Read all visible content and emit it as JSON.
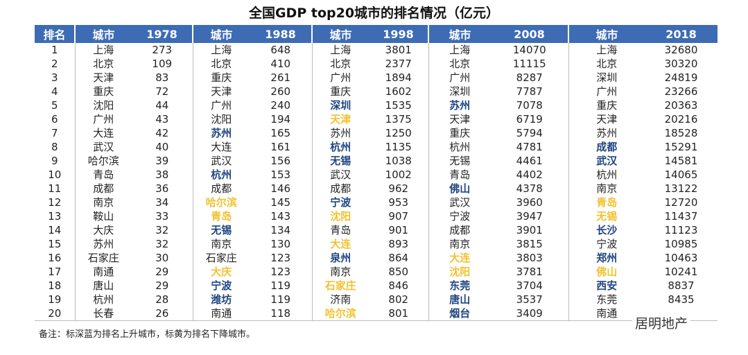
{
  "title": "全国GDP top20城市的排名情况（亿元）",
  "table": {
    "header": [
      "排名",
      "城市",
      "1978",
      "城市",
      "1988",
      "城市",
      "1998",
      "城市",
      "2008",
      "城市",
      "2018"
    ],
    "rows": [
      [
        1,
        "上海",
        273,
        "上海",
        648,
        "上海",
        3801,
        "上海",
        14070,
        "上海",
        32680
      ],
      [
        2,
        "北京",
        109,
        "北京",
        410,
        "北京",
        2377,
        "北京",
        11115,
        "北京",
        30320
      ],
      [
        3,
        "天津",
        83,
        "重庆",
        261,
        "广州",
        1894,
        "广州",
        8287,
        "深圳",
        24819
      ],
      [
        4,
        "重庆",
        72,
        "天津",
        260,
        "重庆",
        1602,
        "深圳",
        7787,
        "广州",
        23266
      ],
      [
        5,
        "沈阳",
        44,
        "广州",
        240,
        {
          "text": "深圳",
          "color": "#1f4580"
        },
        1535,
        {
          "text": "苏州",
          "color": "#1f4580"
        },
        7078,
        "重庆",
        20363
      ],
      [
        6,
        "广州",
        43,
        "沈阳",
        194,
        {
          "text": "天津",
          "color": "#f2c230"
        },
        1375,
        "天津",
        6719,
        "天津",
        20216
      ],
      [
        7,
        "大连",
        42,
        {
          "text": "苏州",
          "color": "#1f4580"
        },
        165,
        "苏州",
        1250,
        "重庆",
        5794,
        "苏州",
        18528
      ],
      [
        8,
        "武汉",
        40,
        "大连",
        161,
        {
          "text": "杭州",
          "color": "#1f4580"
        },
        1135,
        "杭州",
        4781,
        {
          "text": "成都",
          "color": "#1f4580"
        },
        15291
      ],
      [
        9,
        "哈尔滨",
        39,
        "武汉",
        156,
        {
          "text": "无锡",
          "color": "#1f4580"
        },
        1038,
        "无锡",
        4461,
        {
          "text": "武汉",
          "color": "#1f4580"
        },
        14581
      ],
      [
        10,
        "青岛",
        38,
        {
          "text": "杭州",
          "color": "#1f4580"
        },
        153,
        "武汉",
        1002,
        "青岛",
        4402,
        "杭州",
        14065
      ],
      [
        11,
        "成都",
        36,
        "成都",
        146,
        "成都",
        962,
        {
          "text": "佛山",
          "color": "#1f4580"
        },
        4378,
        "南京",
        13122
      ],
      [
        12,
        "南京",
        34,
        {
          "text": "哈尔滨",
          "color": "#f2c230"
        },
        145,
        {
          "text": "宁波",
          "color": "#1f4580"
        },
        953,
        "武汉",
        3960,
        {
          "text": "青岛",
          "color": "#f2c230"
        },
        12720
      ],
      [
        13,
        "鞍山",
        33,
        {
          "text": "青岛",
          "color": "#f2c230"
        },
        143,
        {
          "text": "沈阳",
          "color": "#f2c230"
        },
        907,
        "宁波",
        3947,
        {
          "text": "无锡",
          "color": "#f2c230"
        },
        11437
      ],
      [
        14,
        "大庆",
        32,
        {
          "text": "无锡",
          "color": "#1f4580"
        },
        134,
        "青岛",
        901,
        "成都",
        3901,
        {
          "text": "长沙",
          "color": "#1f4580"
        },
        11123
      ],
      [
        15,
        "苏州",
        32,
        "南京",
        130,
        {
          "text": "大连",
          "color": "#f2c230"
        },
        893,
        "南京",
        3815,
        "宁波",
        10985
      ],
      [
        16,
        "石家庄",
        30,
        "石家庄",
        123,
        {
          "text": "泉州",
          "color": "#1f4580"
        },
        864,
        {
          "text": "大连",
          "color": "#f2c230"
        },
        3803,
        {
          "text": "郑州",
          "color": "#1f4580"
        },
        10463
      ],
      [
        17,
        "南通",
        29,
        {
          "text": "大庆",
          "color": "#f2c230"
        },
        123,
        "南京",
        850,
        {
          "text": "沈阳",
          "color": "#f2c230"
        },
        3781,
        {
          "text": "佛山",
          "color": "#f2c230"
        },
        10241
      ],
      [
        18,
        "唐山",
        29,
        {
          "text": "宁波",
          "color": "#1f4580"
        },
        119,
        {
          "text": "石家庄",
          "color": "#f2c230"
        },
        846,
        {
          "text": "东莞",
          "color": "#1f4580"
        },
        3704,
        {
          "text": "西安",
          "color": "#1f4580"
        },
        8837
      ],
      [
        19,
        "杭州",
        28,
        {
          "text": "潍坊",
          "color": "#1f4580"
        },
        119,
        "济南",
        802,
        {
          "text": "唐山",
          "color": "#1f4580"
        },
        3537,
        "东莞",
        8435
      ],
      [
        20,
        "长春",
        26,
        "南通",
        118,
        {
          "text": "哈尔滨",
          "color": "#f2c230"
        },
        801,
        {
          "text": "烟台",
          "color": "#1f4580"
        },
        3409,
        "南通"
      ]
    ]
  },
  "note": "备注：标深蓝为排名上升城市，标黄为排名下降城市。",
  "watermark": "居明地产"
}
